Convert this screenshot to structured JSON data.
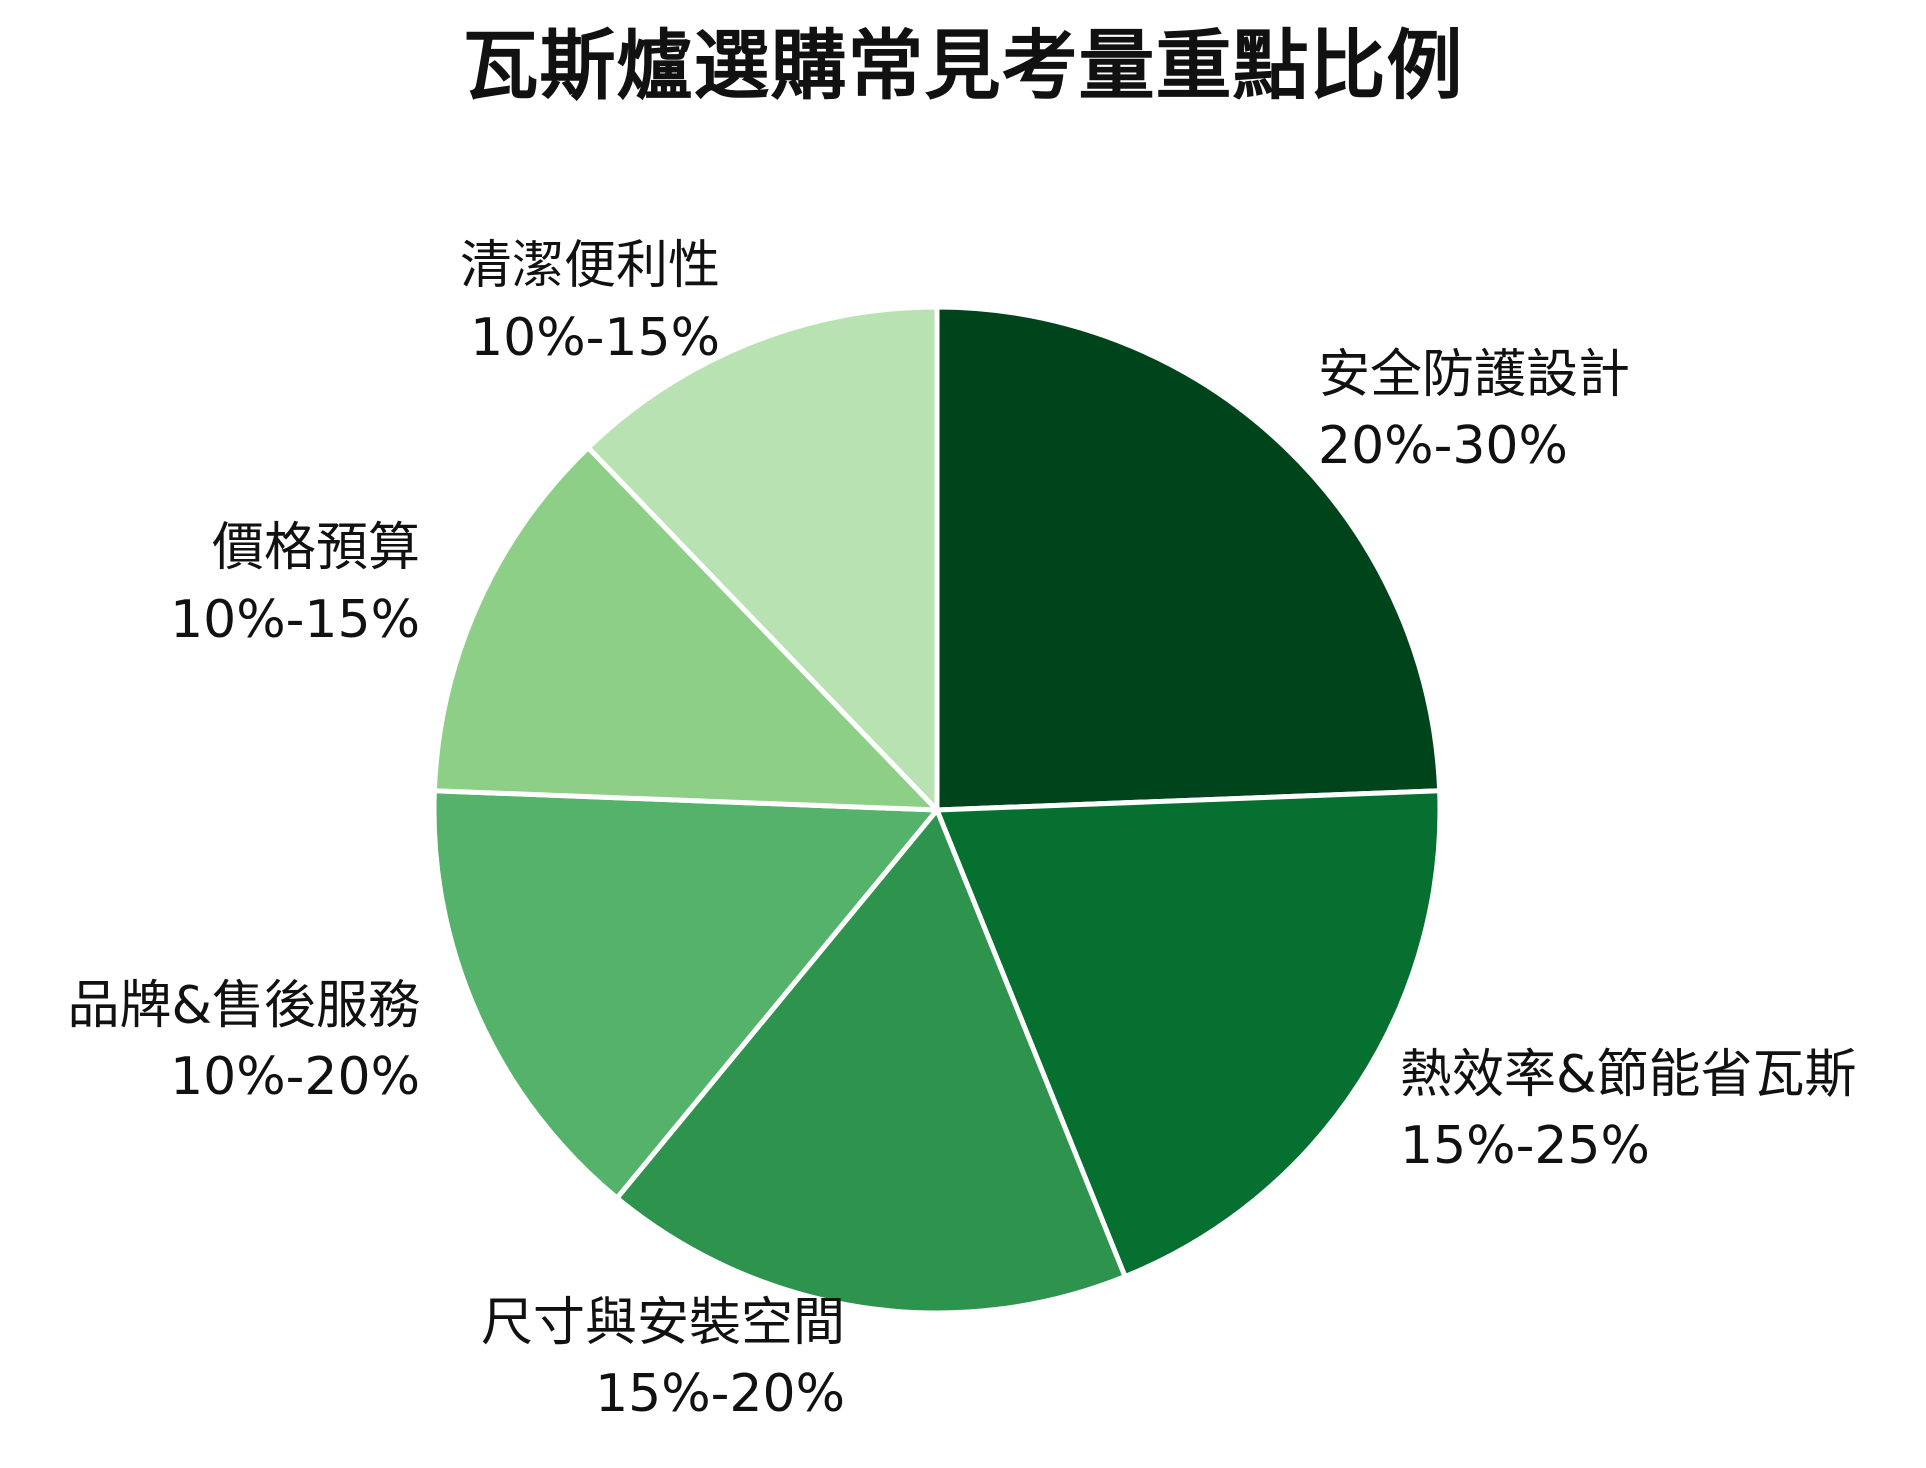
{
  "chart_data": {
    "type": "pie",
    "title": "瓦斯爐選購常見考量重點比例",
    "slices": [
      {
        "label": "安全防護設計",
        "range_text": "20%-30%",
        "value": 25,
        "color": "#00441b"
      },
      {
        "label": "熱效率&節能省瓦斯",
        "range_text": "15%-25%",
        "value": 20,
        "color": "#05702f"
      },
      {
        "label": "尺寸與安裝空間",
        "range_text": "15%-20%",
        "value": 17.5,
        "color": "#2d934d"
      },
      {
        "label": "品牌&售後服務",
        "range_text": "10%-20%",
        "value": 15,
        "color": "#55b26a"
      },
      {
        "label": "價格預算",
        "range_text": "10%-15%",
        "value": 12.5,
        "color": "#8ecf87"
      },
      {
        "label": "清潔便利性",
        "range_text": "10%-15%",
        "value": 12.5,
        "color": "#b9e2b2"
      }
    ],
    "start_angle_deg": 0,
    "direction": "clockwise"
  }
}
